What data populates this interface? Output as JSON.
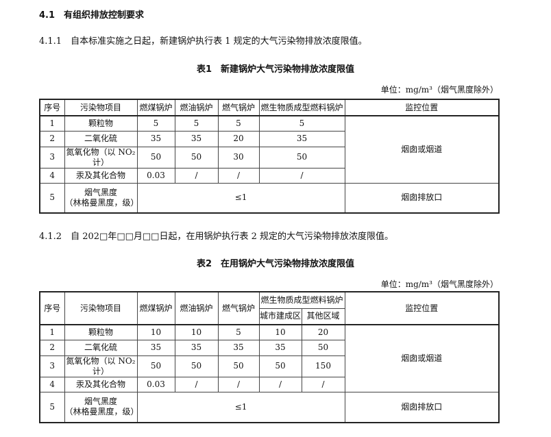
{
  "section": {
    "number": "4.1",
    "title": "有组织排放控制要求"
  },
  "clause1": {
    "number": "4.1.1",
    "text": "自本标准实施之日起，新建锅炉执行表 1 规定的大气污染物排放浓度限值。"
  },
  "table1": {
    "title": "表1　新建锅炉大气污染物排放浓度限值",
    "unit": "单位：mg/m³（烟气黑度除外）",
    "headers": [
      "序号",
      "污染物项目",
      "燃煤锅炉",
      "燃油锅炉",
      "燃气锅炉",
      "燃生物质成型燃料锅炉",
      "监控位置"
    ],
    "rows": [
      [
        "1",
        "颗粒物",
        "5",
        "5",
        "5",
        "5"
      ],
      [
        "2",
        "二氧化硫",
        "35",
        "35",
        "20",
        "35"
      ],
      [
        "3",
        "氮氧化物（以 NO₂ 计）",
        "50",
        "50",
        "30",
        "50"
      ],
      [
        "4",
        "汞及其化合物",
        "0.03",
        "/",
        "/",
        "/"
      ]
    ],
    "row5": {
      "no": "5",
      "item": "烟气黑度",
      "item2": "（林格曼黑度，级）",
      "value": "≤1",
      "location": "烟囱排放口"
    },
    "location_main": "烟囱或烟道"
  },
  "clause2": {
    "number": "4.1.2",
    "text": "自 202□年□□月□□日起，在用锅炉执行表 2 规定的大气污染物排放浓度限值。"
  },
  "table2": {
    "title": "表2　在用锅炉大气污染物排放浓度限值",
    "unit": "单位：mg/m³（烟气黑度除外）",
    "headers": [
      "序号",
      "污染物项目",
      "燃煤锅炉",
      "燃油锅炉",
      "燃气锅炉",
      "燃生物质成型燃料锅炉",
      "监控位置"
    ],
    "subheaders": [
      "城市建成区",
      "其他区域"
    ],
    "rows": [
      [
        "1",
        "颗粒物",
        "10",
        "10",
        "5",
        "10",
        "20"
      ],
      [
        "2",
        "二氧化硫",
        "35",
        "35",
        "35",
        "35",
        "50"
      ],
      [
        "3",
        "氮氧化物（以 NO₂ 计）",
        "50",
        "50",
        "50",
        "50",
        "150"
      ],
      [
        "4",
        "汞及其化合物",
        "0.03",
        "/",
        "/",
        "/",
        "/"
      ]
    ],
    "row5": {
      "no": "5",
      "item": "烟气黑度",
      "item2": "（林格曼黑度，级）",
      "value": "≤1",
      "location": "烟囱排放口"
    },
    "location_main": "烟囱或烟道"
  }
}
